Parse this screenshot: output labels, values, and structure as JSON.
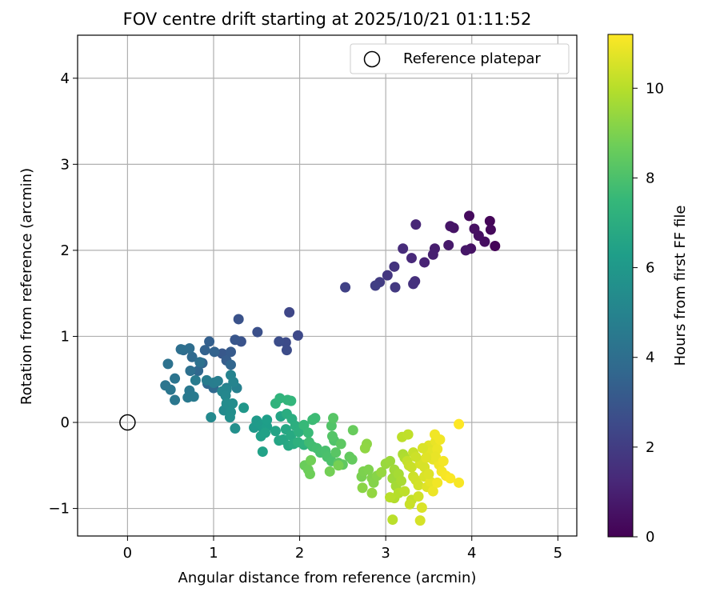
{
  "chart_data": {
    "type": "scatter",
    "title": "FOV centre drift starting at 2025/10/21 01:11:52",
    "xlabel": "Angular distance from reference (arcmin)",
    "ylabel": "Rotation from reference (arcmin)",
    "xlim": [
      -0.58,
      5.22
    ],
    "ylim": [
      -1.32,
      4.5
    ],
    "xticks": [
      0,
      1,
      2,
      3,
      4,
      5
    ],
    "yticks": [
      -1,
      0,
      1,
      2,
      3,
      4
    ],
    "xtick_labels": [
      "0",
      "1",
      "2",
      "3",
      "4",
      "5"
    ],
    "ytick_labels": [
      "−1",
      "0",
      "1",
      "2",
      "3",
      "4"
    ],
    "grid": true,
    "legend": {
      "position": "top-right",
      "label": "Reference platepar"
    },
    "reference_point": {
      "x": 0,
      "y": 0
    },
    "colorbar": {
      "label": "Hours from first FF file",
      "range": [
        0,
        11.2
      ],
      "ticks": [
        0,
        2,
        4,
        6,
        8,
        10
      ],
      "tick_labels": [
        "0",
        "2",
        "4",
        "6",
        "8",
        "10"
      ],
      "colormap": [
        "#440154",
        "#482878",
        "#3e4989",
        "#31688e",
        "#26828e",
        "#1f9e89",
        "#35b779",
        "#6ece58",
        "#b5de2b",
        "#fde725"
      ]
    },
    "series": [
      {
        "name": "drift",
        "points": [
          [
            4.27,
            2.05,
            0.1
          ],
          [
            4.21,
            2.34,
            0.15
          ],
          [
            4.22,
            2.24,
            0.25
          ],
          [
            3.97,
            2.4,
            0.3
          ],
          [
            4.15,
            2.1,
            0.4
          ],
          [
            4.08,
            2.17,
            0.45
          ],
          [
            4.03,
            2.25,
            0.5
          ],
          [
            3.99,
            2.02,
            0.55
          ],
          [
            3.79,
            2.26,
            0.6
          ],
          [
            3.75,
            2.28,
            0.65
          ],
          [
            3.93,
            2.0,
            0.7
          ],
          [
            3.73,
            2.06,
            0.8
          ],
          [
            3.57,
            2.02,
            0.9
          ],
          [
            3.55,
            1.95,
            1.0
          ],
          [
            3.45,
            1.86,
            1.1
          ],
          [
            3.35,
            2.3,
            1.2
          ],
          [
            3.3,
            1.91,
            1.3
          ],
          [
            3.2,
            2.02,
            1.4
          ],
          [
            3.34,
            1.64,
            1.5
          ],
          [
            3.32,
            1.61,
            1.6
          ],
          [
            3.1,
            1.81,
            1.7
          ],
          [
            3.02,
            1.71,
            1.8
          ],
          [
            3.11,
            1.57,
            1.9
          ],
          [
            2.93,
            1.63,
            2.0
          ],
          [
            2.88,
            1.59,
            2.1
          ],
          [
            2.53,
            1.57,
            2.2
          ],
          [
            1.88,
            1.28,
            2.4
          ],
          [
            1.98,
            1.01,
            2.5
          ],
          [
            1.84,
            0.93,
            2.55
          ],
          [
            1.85,
            0.84,
            2.6
          ],
          [
            1.76,
            0.94,
            2.65
          ],
          [
            1.51,
            1.05,
            2.75
          ],
          [
            1.29,
            1.2,
            2.85
          ],
          [
            1.32,
            0.94,
            2.9
          ],
          [
            1.25,
            0.96,
            3.0
          ],
          [
            1.1,
            0.8,
            3.1
          ],
          [
            1.2,
            0.82,
            3.2
          ],
          [
            1.15,
            0.72,
            3.3
          ],
          [
            0.95,
            0.94,
            3.4
          ],
          [
            0.9,
            0.84,
            3.5
          ],
          [
            1.01,
            0.82,
            3.55
          ],
          [
            0.87,
            0.69,
            3.6
          ],
          [
            1.2,
            0.67,
            3.65
          ],
          [
            0.93,
            0.45,
            3.7
          ],
          [
            0.82,
            0.6,
            3.75
          ],
          [
            1.0,
            0.4,
            3.8
          ],
          [
            0.75,
            0.76,
            3.85
          ],
          [
            0.65,
            0.84,
            3.9
          ],
          [
            0.72,
            0.86,
            4.0
          ],
          [
            0.62,
            0.85,
            4.05
          ],
          [
            0.73,
            0.6,
            4.1
          ],
          [
            0.84,
            0.7,
            4.15
          ],
          [
            0.47,
            0.68,
            4.2
          ],
          [
            0.55,
            0.51,
            4.3
          ],
          [
            0.44,
            0.43,
            4.35
          ],
          [
            0.5,
            0.38,
            4.4
          ],
          [
            0.55,
            0.26,
            4.45
          ],
          [
            0.72,
            0.37,
            4.5
          ],
          [
            0.7,
            0.29,
            4.55
          ],
          [
            0.77,
            0.3,
            4.6
          ],
          [
            0.79,
            0.49,
            4.65
          ],
          [
            0.92,
            0.49,
            4.7
          ],
          [
            1.0,
            0.46,
            4.75
          ],
          [
            1.05,
            0.48,
            4.8
          ],
          [
            1.15,
            0.4,
            4.85
          ],
          [
            1.27,
            0.4,
            4.9
          ],
          [
            1.2,
            0.55,
            5.0
          ],
          [
            1.23,
            0.47,
            5.05
          ],
          [
            1.15,
            0.38,
            5.1
          ],
          [
            1.1,
            0.36,
            5.15
          ],
          [
            1.14,
            0.31,
            5.2
          ],
          [
            0.97,
            0.06,
            5.3
          ],
          [
            1.12,
            0.14,
            5.35
          ],
          [
            1.15,
            0.22,
            5.4
          ],
          [
            1.22,
            0.22,
            5.45
          ],
          [
            1.2,
            0.12,
            5.5
          ],
          [
            1.19,
            0.06,
            5.55
          ],
          [
            1.25,
            -0.07,
            5.6
          ],
          [
            1.35,
            0.17,
            5.9
          ],
          [
            1.47,
            -0.06,
            6.0
          ],
          [
            1.5,
            0.02,
            6.05
          ],
          [
            1.55,
            -0.03,
            6.1
          ],
          [
            1.58,
            -0.08,
            6.15
          ],
          [
            1.62,
            -0.05,
            6.2
          ],
          [
            1.62,
            0.03,
            6.25
          ],
          [
            1.55,
            -0.16,
            6.3
          ],
          [
            1.6,
            -0.12,
            6.35
          ],
          [
            1.57,
            -0.34,
            6.4
          ],
          [
            1.72,
            -0.1,
            6.45
          ],
          [
            1.78,
            0.07,
            6.5
          ],
          [
            1.76,
            -0.21,
            6.55
          ],
          [
            1.81,
            -0.2,
            6.6
          ],
          [
            1.84,
            -0.08,
            6.65
          ],
          [
            1.87,
            -0.27,
            6.7
          ],
          [
            1.9,
            -0.15,
            6.75
          ],
          [
            1.93,
            -0.25,
            6.85
          ],
          [
            1.85,
            0.1,
            6.9
          ],
          [
            1.91,
            0.04,
            6.95
          ],
          [
            1.95,
            -0.04,
            7.0
          ],
          [
            1.99,
            -0.11,
            7.05
          ],
          [
            1.98,
            -0.23,
            7.1
          ],
          [
            2.05,
            -0.26,
            7.15
          ],
          [
            1.72,
            0.22,
            7.2
          ],
          [
            1.77,
            0.28,
            7.25
          ],
          [
            1.86,
            0.26,
            7.3
          ],
          [
            1.9,
            0.25,
            7.35
          ],
          [
            2.05,
            -0.03,
            7.5
          ],
          [
            2.1,
            -0.12,
            7.55
          ],
          [
            2.15,
            0.03,
            7.6
          ],
          [
            2.18,
            0.05,
            7.65
          ],
          [
            2.11,
            -0.23,
            7.7
          ],
          [
            2.15,
            -0.28,
            7.75
          ],
          [
            2.2,
            -0.3,
            7.8
          ],
          [
            2.24,
            -0.35,
            7.85
          ],
          [
            2.3,
            -0.33,
            7.9
          ],
          [
            2.32,
            -0.4,
            7.95
          ],
          [
            2.37,
            -0.45,
            8.0
          ],
          [
            2.4,
            -0.21,
            8.05
          ],
          [
            2.37,
            -0.04,
            8.1
          ],
          [
            2.38,
            -0.16,
            8.15
          ],
          [
            2.39,
            0.05,
            8.2
          ],
          [
            2.42,
            -0.35,
            8.25
          ],
          [
            2.45,
            -0.47,
            8.3
          ],
          [
            2.48,
            -0.25,
            8.35
          ],
          [
            2.5,
            -0.49,
            8.4
          ],
          [
            2.58,
            -0.4,
            8.45
          ],
          [
            2.61,
            -0.43,
            8.5
          ],
          [
            2.62,
            -0.09,
            8.55
          ],
          [
            2.06,
            -0.5,
            8.6
          ],
          [
            2.1,
            -0.55,
            8.65
          ],
          [
            2.12,
            -0.6,
            8.7
          ],
          [
            2.13,
            -0.44,
            8.75
          ],
          [
            2.35,
            -0.57,
            8.8
          ],
          [
            2.45,
            -0.5,
            8.85
          ],
          [
            2.72,
            -0.63,
            8.9
          ],
          [
            2.74,
            -0.57,
            8.95
          ],
          [
            2.8,
            -0.55,
            9.0
          ],
          [
            2.84,
            -0.65,
            9.05
          ],
          [
            2.86,
            -0.7,
            9.1
          ],
          [
            2.9,
            -0.62,
            9.15
          ],
          [
            2.73,
            -0.76,
            9.2
          ],
          [
            2.78,
            -0.25,
            9.25
          ],
          [
            2.76,
            -0.3,
            9.3
          ],
          [
            2.84,
            -0.82,
            9.35
          ],
          [
            2.95,
            -0.58,
            9.4
          ],
          [
            3.0,
            -0.48,
            9.45
          ],
          [
            3.05,
            -0.45,
            9.5
          ],
          [
            3.08,
            -0.65,
            9.55
          ],
          [
            3.1,
            -0.55,
            9.6
          ],
          [
            3.12,
            -0.74,
            9.65
          ],
          [
            3.15,
            -0.6,
            9.7
          ],
          [
            3.18,
            -0.68,
            9.75
          ],
          [
            3.2,
            -0.37,
            9.8
          ],
          [
            3.22,
            -0.41,
            9.85
          ],
          [
            3.1,
            -0.88,
            9.9
          ],
          [
            3.15,
            -0.82,
            9.95
          ],
          [
            3.05,
            -0.87,
            10.0
          ],
          [
            3.08,
            -1.13,
            10.05
          ],
          [
            3.19,
            -0.17,
            10.1
          ],
          [
            3.26,
            -0.14,
            10.15
          ],
          [
            3.25,
            -0.45,
            10.2
          ],
          [
            3.27,
            -0.5,
            10.25
          ],
          [
            3.3,
            -0.52,
            10.3
          ],
          [
            3.32,
            -0.63,
            10.35
          ],
          [
            3.35,
            -0.67,
            10.4
          ],
          [
            3.38,
            -0.73,
            10.45
          ],
          [
            3.4,
            -0.48,
            10.5
          ],
          [
            3.42,
            -0.45,
            10.55
          ],
          [
            3.45,
            -0.63,
            10.6
          ],
          [
            3.48,
            -0.33,
            10.65
          ],
          [
            3.5,
            -0.27,
            10.7
          ],
          [
            3.52,
            -0.35,
            10.75
          ],
          [
            3.55,
            -0.43,
            10.8
          ],
          [
            3.58,
            -0.22,
            10.85
          ],
          [
            3.6,
            -0.31,
            10.9
          ],
          [
            3.62,
            -0.49,
            10.95
          ],
          [
            3.57,
            -0.14,
            11.0
          ],
          [
            3.3,
            -0.9,
            10.2
          ],
          [
            3.22,
            -0.8,
            10.1
          ],
          [
            3.28,
            -0.95,
            10.3
          ],
          [
            3.38,
            -0.86,
            10.4
          ],
          [
            3.42,
            -0.99,
            10.6
          ],
          [
            3.4,
            -1.14,
            10.5
          ],
          [
            3.48,
            -0.75,
            10.7
          ],
          [
            3.52,
            -0.69,
            10.8
          ],
          [
            3.55,
            -0.8,
            10.9
          ],
          [
            3.6,
            -0.7,
            11.0
          ],
          [
            3.65,
            -0.57,
            11.05
          ],
          [
            3.7,
            -0.62,
            11.1
          ],
          [
            3.75,
            -0.65,
            11.15
          ],
          [
            3.85,
            -0.7,
            11.1
          ],
          [
            3.85,
            -0.02,
            11.2
          ],
          [
            3.32,
            -0.35,
            10.25
          ],
          [
            3.45,
            -0.52,
            10.55
          ],
          [
            3.5,
            -0.6,
            10.65
          ],
          [
            3.58,
            -0.4,
            10.85
          ],
          [
            3.63,
            -0.2,
            11.0
          ],
          [
            3.67,
            -0.45,
            11.05
          ],
          [
            3.35,
            -0.4,
            10.35
          ],
          [
            3.43,
            -0.3,
            10.6
          ],
          [
            3.47,
            -0.41,
            10.7
          ]
        ]
      }
    ]
  }
}
